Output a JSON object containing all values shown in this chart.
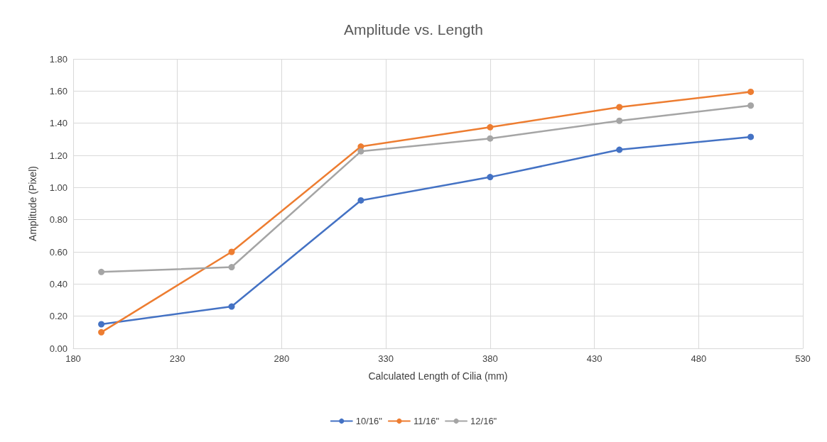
{
  "chart_data": {
    "type": "line",
    "title": "Amplitude vs. Length",
    "xlabel": "Calculated Length of Cilia (mm)",
    "ylabel": "Amplitude (Pixel)",
    "x": [
      193.5,
      256,
      318,
      380,
      442,
      505
    ],
    "series": [
      {
        "name": "10/16\"",
        "color": "#4472c4",
        "values": [
          0.15,
          0.26,
          0.92,
          1.065,
          1.235,
          1.315
        ]
      },
      {
        "name": "11/16\"",
        "color": "#ed7d31",
        "values": [
          0.1,
          0.6,
          1.255,
          1.375,
          1.5,
          1.595
        ]
      },
      {
        "name": "12/16\"",
        "color": "#a5a5a5",
        "values": [
          0.475,
          0.505,
          1.225,
          1.305,
          1.415,
          1.51
        ]
      }
    ],
    "xlim": [
      180,
      530
    ],
    "xticks": [
      180,
      230,
      280,
      330,
      380,
      430,
      480,
      530
    ],
    "ylim": [
      0,
      1.8
    ],
    "yticks": [
      {
        "value": 0,
        "label": "0.00"
      },
      {
        "value": 0.2,
        "label": "0.20"
      },
      {
        "value": 0.4,
        "label": "0.40"
      },
      {
        "value": 0.6,
        "label": "0.60"
      },
      {
        "value": 0.8,
        "label": "0.80"
      },
      {
        "value": 1,
        "label": "1.00"
      },
      {
        "value": 1.2,
        "label": "1.20"
      },
      {
        "value": 1.4,
        "label": "1.40"
      },
      {
        "value": 1.6,
        "label": "1.60"
      },
      {
        "value": 1.8,
        "label": "1.80"
      }
    ],
    "grid": true,
    "legend": "bottom",
    "marker": "circle",
    "line_style": "solid"
  }
}
